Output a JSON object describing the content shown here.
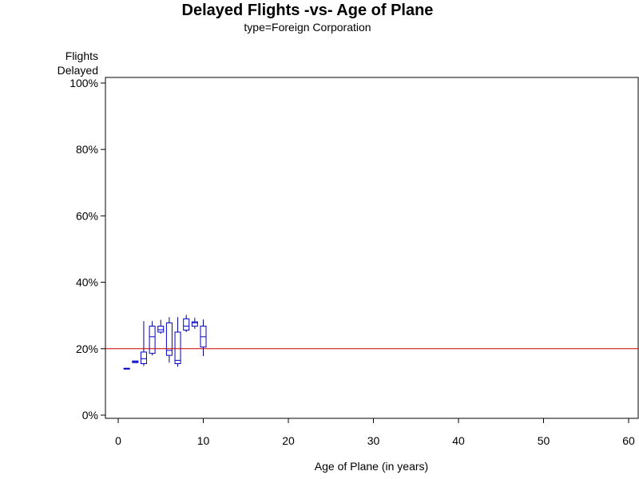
{
  "chart_data": {
    "type": "box",
    "title": "Delayed Flights -vs- Age of Plane",
    "subtitle": "type=Foreign Corporation",
    "xlabel": "Age of Plane (in years)",
    "ylabel_lines": [
      "Flights",
      "Delayed"
    ],
    "xlim": [
      -1,
      61
    ],
    "ylim": [
      0,
      1
    ],
    "xticks": [
      0,
      10,
      20,
      30,
      40,
      50,
      60
    ],
    "xtick_labels": [
      "0",
      "10",
      "20",
      "30",
      "40",
      "50",
      "60"
    ],
    "yticks": [
      0,
      0.2,
      0.4,
      0.6,
      0.8,
      1.0
    ],
    "ytick_labels": [
      "0%",
      "20%",
      "40%",
      "60%",
      "80%",
      "100%"
    ],
    "reference_line": {
      "y": 0.2,
      "color": "#cc0000"
    },
    "box_color": "#0000cc",
    "whisker_color": "#000080",
    "boxes": [
      {
        "x": 1,
        "low": 0.141,
        "q1": 0.141,
        "median": 0.141,
        "q3": 0.141,
        "high": 0.141
      },
      {
        "x": 2,
        "low": 0.158,
        "q1": 0.158,
        "median": 0.161,
        "q3": 0.163,
        "high": 0.163
      },
      {
        "x": 3,
        "low": 0.148,
        "q1": 0.155,
        "median": 0.17,
        "q3": 0.19,
        "high": 0.283
      },
      {
        "x": 4,
        "low": 0.18,
        "q1": 0.186,
        "median": 0.236,
        "q3": 0.268,
        "high": 0.283
      },
      {
        "x": 5,
        "low": 0.245,
        "q1": 0.25,
        "median": 0.257,
        "q3": 0.268,
        "high": 0.287
      },
      {
        "x": 6,
        "low": 0.158,
        "q1": 0.18,
        "median": 0.195,
        "q3": 0.278,
        "high": 0.295
      },
      {
        "x": 7,
        "low": 0.146,
        "q1": 0.155,
        "median": 0.165,
        "q3": 0.25,
        "high": 0.295
      },
      {
        "x": 8,
        "low": 0.25,
        "q1": 0.256,
        "median": 0.268,
        "q3": 0.29,
        "high": 0.302
      },
      {
        "x": 9,
        "low": 0.26,
        "q1": 0.268,
        "median": 0.278,
        "q3": 0.281,
        "high": 0.293
      },
      {
        "x": 10,
        "low": 0.178,
        "q1": 0.205,
        "median": 0.236,
        "q3": 0.268,
        "high": 0.288
      }
    ]
  }
}
